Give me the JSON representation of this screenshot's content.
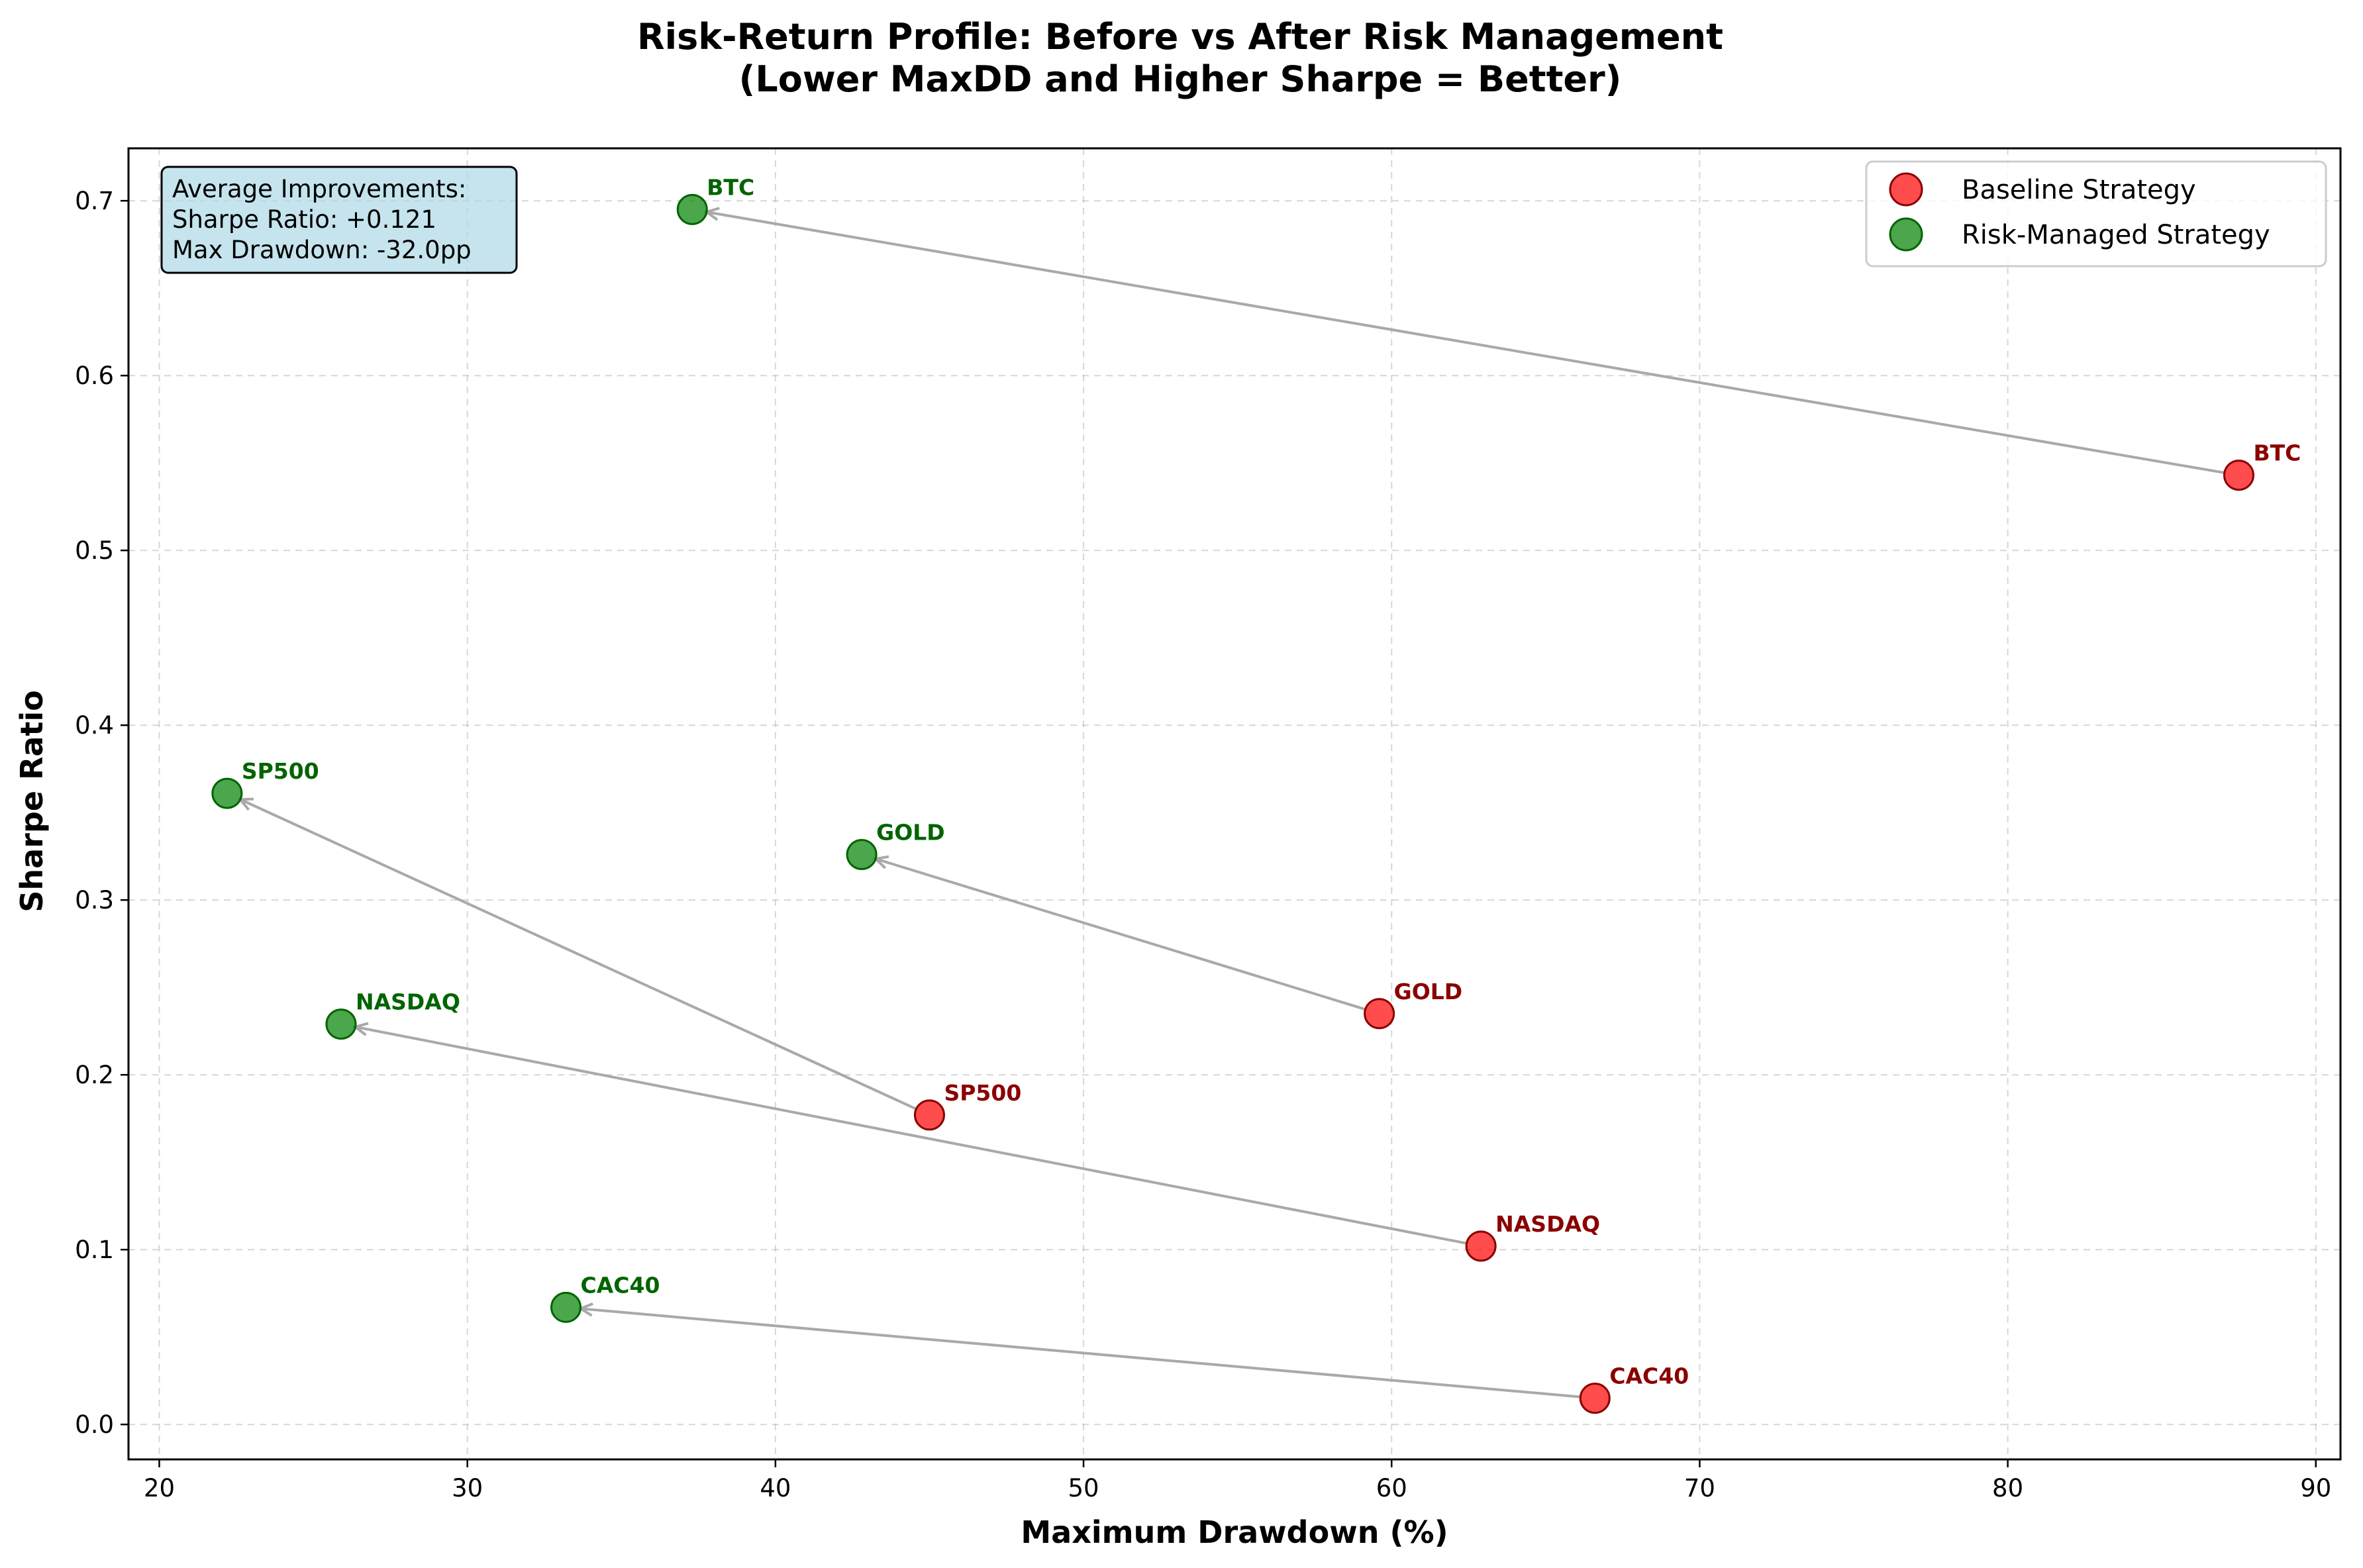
{
  "chart_data": {
    "type": "scatter",
    "title_lines": [
      "Risk-Return Profile: Before vs After Risk Management",
      "(Lower MaxDD and Higher Sharpe = Better)"
    ],
    "xlabel": "Maximum Drawdown (%)",
    "ylabel": "Sharpe Ratio",
    "xlim": [
      19,
      90.8
    ],
    "ylim": [
      -0.02,
      0.73
    ],
    "xticks": [
      20,
      30,
      40,
      50,
      60,
      70,
      80,
      90
    ],
    "yticks": [
      0.0,
      0.1,
      0.2,
      0.3,
      0.4,
      0.5,
      0.6,
      0.7
    ],
    "grid": true,
    "legend_position": "top-right",
    "series": [
      {
        "name": "Baseline Strategy",
        "color": "#ff0000",
        "label_color": "#8b0000",
        "points": [
          {
            "label": "BTC",
            "x": 87.5,
            "y": 0.543
          },
          {
            "label": "GOLD",
            "x": 59.6,
            "y": 0.235
          },
          {
            "label": "SP500",
            "x": 45.0,
            "y": 0.177
          },
          {
            "label": "NASDAQ",
            "x": 62.9,
            "y": 0.102
          },
          {
            "label": "CAC40",
            "x": 66.6,
            "y": 0.015
          }
        ]
      },
      {
        "name": "Risk-Managed Strategy",
        "color": "#008000",
        "label_color": "#006400",
        "points": [
          {
            "label": "BTC",
            "x": 37.3,
            "y": 0.695
          },
          {
            "label": "GOLD",
            "x": 42.8,
            "y": 0.326
          },
          {
            "label": "SP500",
            "x": 22.2,
            "y": 0.361
          },
          {
            "label": "NASDAQ",
            "x": 25.9,
            "y": 0.229
          },
          {
            "label": "CAC40",
            "x": 33.2,
            "y": 0.067
          }
        ]
      }
    ],
    "stats_box": {
      "lines": [
        "Average Improvements:",
        "Sharpe Ratio: +0.121",
        "Max Drawdown: -32.0pp"
      ],
      "background": "#add8e6"
    }
  }
}
